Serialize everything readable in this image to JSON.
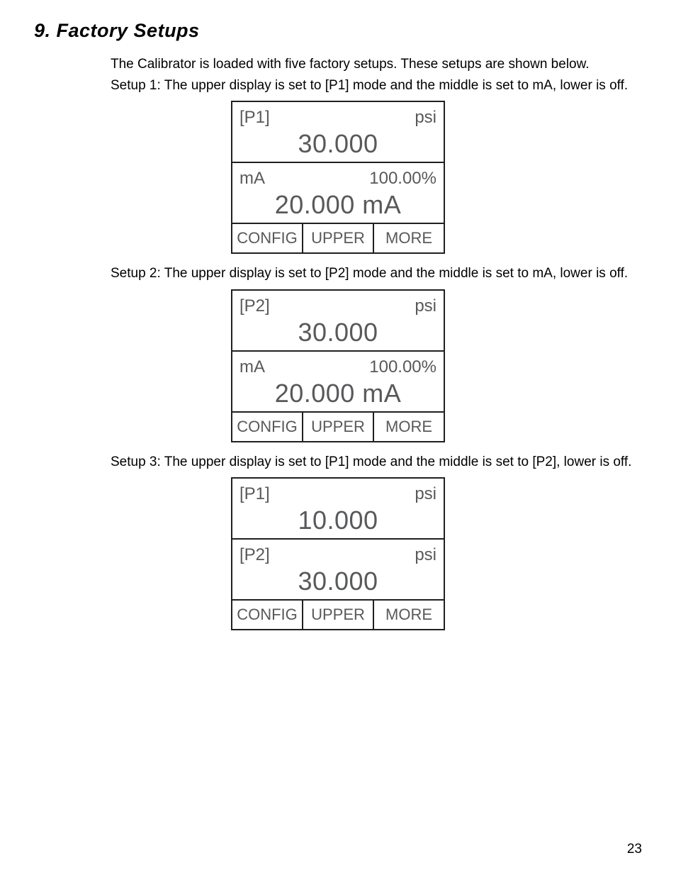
{
  "section_title": "9. Factory Setups",
  "intro": "The Calibrator is loaded with five factory setups. These setups are shown below.",
  "setup_texts": {
    "s1": "Setup 1:  The upper display is set to [P1] mode and the middle is set to mA, lower is off.",
    "s2": "Setup 2:  The upper display is set to [P2] mode and the middle is set to mA, lower is off.",
    "s3": "Setup 3:  The upper display is set to [P1] mode and the middle is set to [P2], lower is off."
  },
  "displays": {
    "d1": {
      "upper_mode": "[P1]",
      "upper_unit": "psi",
      "upper_value": "30.000",
      "middle_mode": "mA",
      "middle_unit": "100.00%",
      "middle_value": "20.000 mA",
      "btn1": "CONFIG",
      "btn2": "UPPER",
      "btn3": "MORE"
    },
    "d2": {
      "upper_mode": "[P2]",
      "upper_unit": "psi",
      "upper_value": "30.000",
      "middle_mode": "mA",
      "middle_unit": "100.00%",
      "middle_value": "20.000 mA",
      "btn1": "CONFIG",
      "btn2": "UPPER",
      "btn3": "MORE"
    },
    "d3": {
      "upper_mode": "[P1]",
      "upper_unit": "psi",
      "upper_value": "10.000",
      "middle_mode": "[P2]",
      "middle_unit": "psi",
      "middle_value": "30.000",
      "btn1": "CONFIG",
      "btn2": "UPPER",
      "btn3": "MORE"
    }
  },
  "page_number": "23",
  "colors": {
    "text": "#000000",
    "lcd_text": "#58595b",
    "border": "#231f20",
    "background": "#ffffff"
  }
}
